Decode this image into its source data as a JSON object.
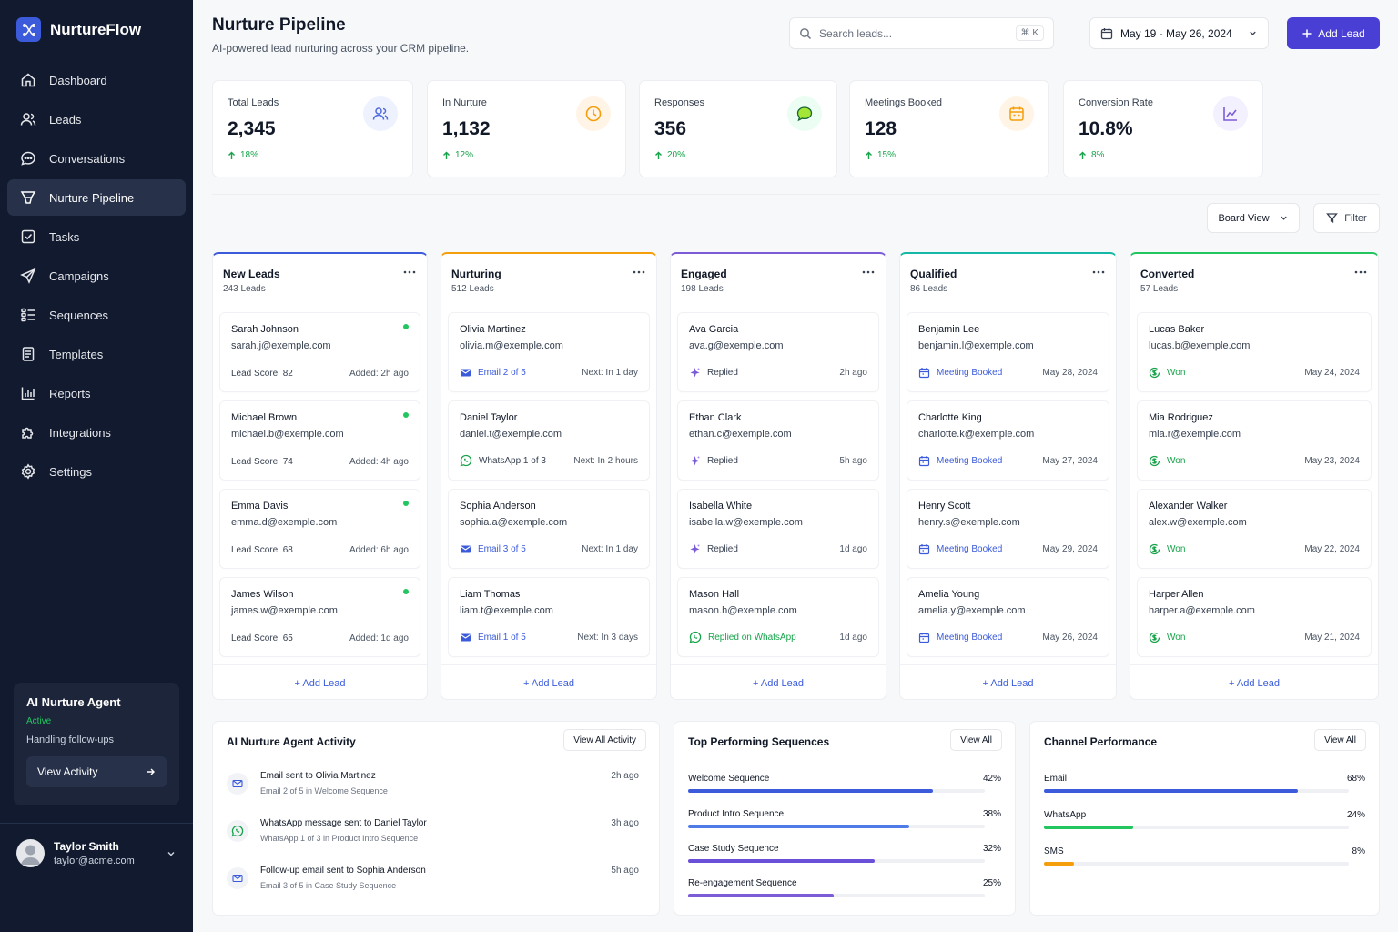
{
  "app": {
    "name": "NurtureFlow"
  },
  "nav": [
    {
      "label": "Dashboard",
      "icon": "home-icon"
    },
    {
      "label": "Leads",
      "icon": "users-icon"
    },
    {
      "label": "Conversations",
      "icon": "chat-icon"
    },
    {
      "label": "Nurture Pipeline",
      "icon": "pipeline-icon",
      "active": true
    },
    {
      "label": "Tasks",
      "icon": "checkbox-icon"
    },
    {
      "label": "Campaigns",
      "icon": "send-icon"
    },
    {
      "label": "Sequences",
      "icon": "sequence-icon"
    },
    {
      "label": "Templates",
      "icon": "document-icon"
    },
    {
      "label": "Reports",
      "icon": "bar-chart-icon"
    },
    {
      "label": "Integrations",
      "icon": "puzzle-icon"
    },
    {
      "label": "Settings",
      "icon": "gear-icon"
    }
  ],
  "agent": {
    "title": "AI Nurture Agent",
    "status": "Active",
    "desc": "Handling follow-ups",
    "button": "View Activity"
  },
  "user": {
    "name": "Taylor Smith",
    "email": "taylor@acme.com"
  },
  "header": {
    "title": "Nurture Pipeline",
    "subtitle": "AI-powered lead nurturing across your CRM pipeline.",
    "search_placeholder": "Search leads...",
    "search_shortcut": "⌘ K",
    "date_range": "May 19 - May 26, 2024",
    "add_lead": "Add Lead"
  },
  "stats": [
    {
      "label": "Total Leads",
      "value": "2,345",
      "change": "18%",
      "icon": "users-icon",
      "icon_bg": "#eef2ff",
      "icon_color": "#4f6bdc"
    },
    {
      "label": "In Nurture",
      "value": "1,132",
      "change": "12%",
      "icon": "clock-icon",
      "icon_bg": "#fff4e5",
      "icon_color": "#f59e0b"
    },
    {
      "label": "Responses",
      "value": "356",
      "change": "20%",
      "icon": "chat-bubble-icon",
      "icon_bg": "#ecfdf3",
      "icon_color": "#84cc16"
    },
    {
      "label": "Meetings Booked",
      "value": "128",
      "change": "15%",
      "icon": "calendar-icon",
      "icon_bg": "#fff4e5",
      "icon_color": "#f59e0b"
    },
    {
      "label": "Conversion Rate",
      "value": "10.8%",
      "change": "8%",
      "icon": "trend-chart-icon",
      "icon_bg": "#f3f0ff",
      "icon_color": "#7c5cd6"
    }
  ],
  "toolbar": {
    "view": "Board View",
    "filter": "Filter"
  },
  "columns": [
    {
      "title": "New Leads",
      "count": "243 Leads",
      "color": "#3b5bdb",
      "add": "+ Add Lead",
      "cards": [
        {
          "name": "Sarah Johnson",
          "email": "sarah.j@exemple.com",
          "left": "Lead Score: 82",
          "right": "Added: 2h ago",
          "type": "score"
        },
        {
          "name": "Michael Brown",
          "email": "michael.b@exemple.com",
          "left": "Lead Score: 74",
          "right": "Added: 4h ago",
          "type": "score"
        },
        {
          "name": "Emma Davis",
          "email": "emma.d@exemple.com",
          "left": "Lead Score: 68",
          "right": "Added: 6h ago",
          "type": "score"
        },
        {
          "name": "James Wilson",
          "email": "james.w@exemple.com",
          "left": "Lead Score: 65",
          "right": "Added: 1d ago",
          "type": "score"
        }
      ]
    },
    {
      "title": "Nurturing",
      "count": "512 Leads",
      "color": "#f59e0b",
      "add": "+ Add Lead",
      "cards": [
        {
          "name": "Olivia Martinez",
          "email": "olivia.m@exemple.com",
          "left": "Email 2 of 5",
          "right": "Next: In 1 day",
          "type": "email"
        },
        {
          "name": "Daniel Taylor",
          "email": "daniel.t@exemple.com",
          "left": "WhatsApp 1 of 3",
          "right": "Next: In 2 hours",
          "type": "whatsapp"
        },
        {
          "name": "Sophia Anderson",
          "email": "sophia.a@exemple.com",
          "left": "Email 3 of 5",
          "right": "Next: In 1 day",
          "type": "email"
        },
        {
          "name": "Liam Thomas",
          "email": "liam.t@exemple.com",
          "left": "Email 1 of 5",
          "right": "Next: In 3 days",
          "type": "email"
        }
      ]
    },
    {
      "title": "Engaged",
      "count": "198 Leads",
      "color": "#7c5cd6",
      "add": "+ Add Lead",
      "cards": [
        {
          "name": "Ava Garcia",
          "email": "ava.g@exemple.com",
          "left": "Replied",
          "right": "2h ago",
          "type": "replied"
        },
        {
          "name": "Ethan Clark",
          "email": "ethan.c@exemple.com",
          "left": "Replied",
          "right": "5h ago",
          "type": "replied"
        },
        {
          "name": "Isabella White",
          "email": "isabella.w@exemple.com",
          "left": "Replied",
          "right": "1d ago",
          "type": "replied"
        },
        {
          "name": "Mason Hall",
          "email": "mason.h@exemple.com",
          "left": "Replied on WhatsApp",
          "right": "1d ago",
          "type": "replied-whatsapp"
        }
      ]
    },
    {
      "title": "Qualified",
      "count": "86 Leads",
      "color": "#14b8a6",
      "add": "+ Add Lead",
      "cards": [
        {
          "name": "Benjamin Lee",
          "email": "benjamin.l@exemple.com",
          "left": "Meeting Booked",
          "right": "May 28, 2024",
          "type": "meeting"
        },
        {
          "name": "Charlotte King",
          "email": "charlotte.k@exemple.com",
          "left": "Meeting Booked",
          "right": "May 27, 2024",
          "type": "meeting"
        },
        {
          "name": "Henry Scott",
          "email": "henry.s@exemple.com",
          "left": "Meeting Booked",
          "right": "May 29, 2024",
          "type": "meeting"
        },
        {
          "name": "Amelia Young",
          "email": "amelia.y@exemple.com",
          "left": "Meeting Booked",
          "right": "May 26, 2024",
          "type": "meeting"
        }
      ]
    },
    {
      "title": "Converted",
      "count": "57 Leads",
      "color": "#22c55e",
      "add": "+ Add Lead",
      "cards": [
        {
          "name": "Lucas Baker",
          "email": "lucas.b@exemple.com",
          "left": "Won",
          "right": "May 24, 2024",
          "type": "won"
        },
        {
          "name": "Mia Rodriguez",
          "email": "mia.r@exemple.com",
          "left": "Won",
          "right": "May 23, 2024",
          "type": "won"
        },
        {
          "name": "Alexander Walker",
          "email": "alex.w@exemple.com",
          "left": "Won",
          "right": "May 22, 2024",
          "type": "won"
        },
        {
          "name": "Harper Allen",
          "email": "harper.a@exemple.com",
          "left": "Won",
          "right": "May 21, 2024",
          "type": "won"
        }
      ]
    }
  ],
  "activity": {
    "title": "AI Nurture Agent Activity",
    "button": "View All Activity",
    "items": [
      {
        "title": "Email sent to Olivia Martinez",
        "sub": "Email 2 of 5 in Welcome Sequence",
        "time": "2h ago",
        "icon": "mail-icon"
      },
      {
        "title": "WhatsApp message sent to Daniel Taylor",
        "sub": "WhatsApp 1 of 3 in Product Intro Sequence",
        "time": "3h ago",
        "icon": "whatsapp-icon"
      },
      {
        "title": "Follow-up email sent to Sophia Anderson",
        "sub": "Email 3 of 5 in Case Study Sequence",
        "time": "5h ago",
        "icon": "mail-icon"
      }
    ]
  },
  "sequences": {
    "title": "Top Performing Sequences",
    "button": "View All",
    "items": [
      {
        "label": "Welcome Sequence",
        "pct": "42%",
        "value": 42,
        "color": "#3b5bdb"
      },
      {
        "label": "Product Intro Sequence",
        "pct": "38%",
        "value": 38,
        "color": "#4f7be8"
      },
      {
        "label": "Case Study Sequence",
        "pct": "32%",
        "value": 32,
        "color": "#6a4fd8"
      },
      {
        "label": "Re-engagement Sequence",
        "pct": "25%",
        "value": 25,
        "color": "#7c5cd6"
      }
    ]
  },
  "channels": {
    "title": "Channel Performance",
    "button": "View All",
    "items": [
      {
        "label": "Email",
        "pct": "68%",
        "value": 68,
        "color": "#3b5bdb"
      },
      {
        "label": "WhatsApp",
        "pct": "24%",
        "value": 24,
        "color": "#22c55e"
      },
      {
        "label": "SMS",
        "pct": "8%",
        "value": 8,
        "color": "#f59e0b"
      }
    ]
  }
}
